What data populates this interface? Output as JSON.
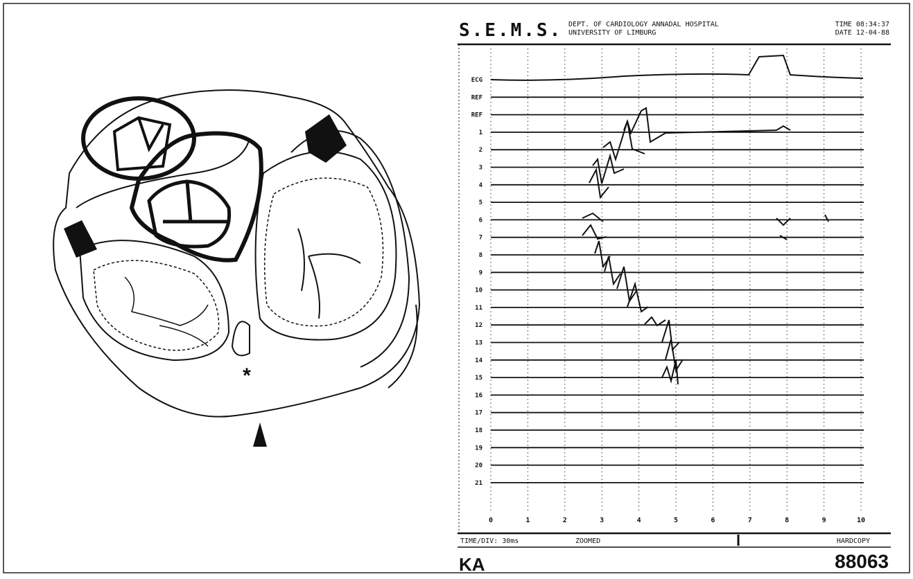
{
  "figure": {
    "drawing": {
      "asterisk": "*"
    },
    "recording": {
      "header": {
        "system": "S.E.M.S.",
        "dept": "DEPT. OF CARDIOLOGY ANNADAL HOSPITAL",
        "university": "UNIVERSITY OF LIMBURG",
        "time": "TIME 08:34:37",
        "date": "DATE 12-04-88"
      },
      "channels": [
        "ECG",
        "REF",
        "REF",
        "1",
        "2",
        "3",
        "4",
        "5",
        "6",
        "7",
        "8",
        "9",
        "10",
        "11",
        "12",
        "13",
        "14",
        "15",
        "16",
        "17",
        "18",
        "19",
        "20",
        "21"
      ],
      "x_axis_labels": [
        0,
        1,
        2,
        3,
        4,
        5,
        6,
        7,
        8,
        9,
        10
      ],
      "footer": {
        "timediv": "TIME/DIV:  30ms",
        "mode": "ZOOMED",
        "hardcopy": "HARDCOPY"
      },
      "patient": "KA",
      "id": "88063"
    }
  }
}
